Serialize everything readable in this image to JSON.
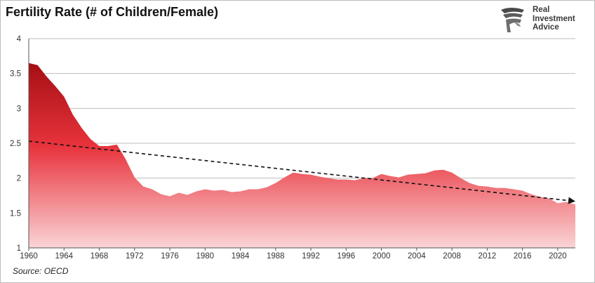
{
  "logo": {
    "line1": "Real",
    "line2": "Investment",
    "line3": "Advice"
  },
  "source": "Source: OECD",
  "colors": {
    "area_top": "#a50f15",
    "area_mid": "#e8333c",
    "area_bottom": "#fad4d6",
    "trend": "#111111",
    "grid": "#bdbdbd"
  },
  "chart_data": {
    "type": "area",
    "title": "Fertility Rate (# of Children/Female)",
    "xlabel": "",
    "ylabel": "",
    "xlim": [
      1960,
      2022
    ],
    "ylim": [
      1,
      4
    ],
    "yticks": [
      "1",
      "1.5",
      "2",
      "2.5",
      "3",
      "3.5",
      "4"
    ],
    "xticks": [
      "1960",
      "1964",
      "1968",
      "1972",
      "1976",
      "1980",
      "1984",
      "1988",
      "1992",
      "1996",
      "2000",
      "2004",
      "2008",
      "2012",
      "2016",
      "2020"
    ],
    "grid": true,
    "x": [
      1960,
      1961,
      1962,
      1963,
      1964,
      1965,
      1966,
      1967,
      1968,
      1969,
      1970,
      1971,
      1972,
      1973,
      1974,
      1975,
      1976,
      1977,
      1978,
      1979,
      1980,
      1981,
      1982,
      1983,
      1984,
      1985,
      1986,
      1987,
      1988,
      1989,
      1990,
      1991,
      1992,
      1993,
      1994,
      1995,
      1996,
      1997,
      1998,
      1999,
      2000,
      2001,
      2002,
      2003,
      2004,
      2005,
      2006,
      2007,
      2008,
      2009,
      2010,
      2011,
      2012,
      2013,
      2014,
      2015,
      2016,
      2017,
      2018,
      2019,
      2020,
      2021,
      2022
    ],
    "values": [
      3.65,
      3.62,
      3.46,
      3.32,
      3.17,
      2.91,
      2.72,
      2.56,
      2.46,
      2.46,
      2.48,
      2.27,
      2.01,
      1.88,
      1.84,
      1.77,
      1.74,
      1.79,
      1.76,
      1.81,
      1.84,
      1.82,
      1.83,
      1.8,
      1.81,
      1.84,
      1.84,
      1.87,
      1.93,
      2.01,
      2.08,
      2.06,
      2.05,
      2.02,
      2.0,
      1.98,
      1.98,
      1.97,
      2.0,
      2.0,
      2.06,
      2.03,
      2.01,
      2.05,
      2.06,
      2.07,
      2.11,
      2.12,
      2.08,
      2.0,
      1.93,
      1.89,
      1.88,
      1.86,
      1.86,
      1.84,
      1.82,
      1.77,
      1.73,
      1.71,
      1.64,
      1.66,
      1.62
    ],
    "trendline": {
      "x": [
        1960,
        2022
      ],
      "values": [
        2.53,
        1.67
      ],
      "style": "dashed with arrowhead"
    }
  }
}
